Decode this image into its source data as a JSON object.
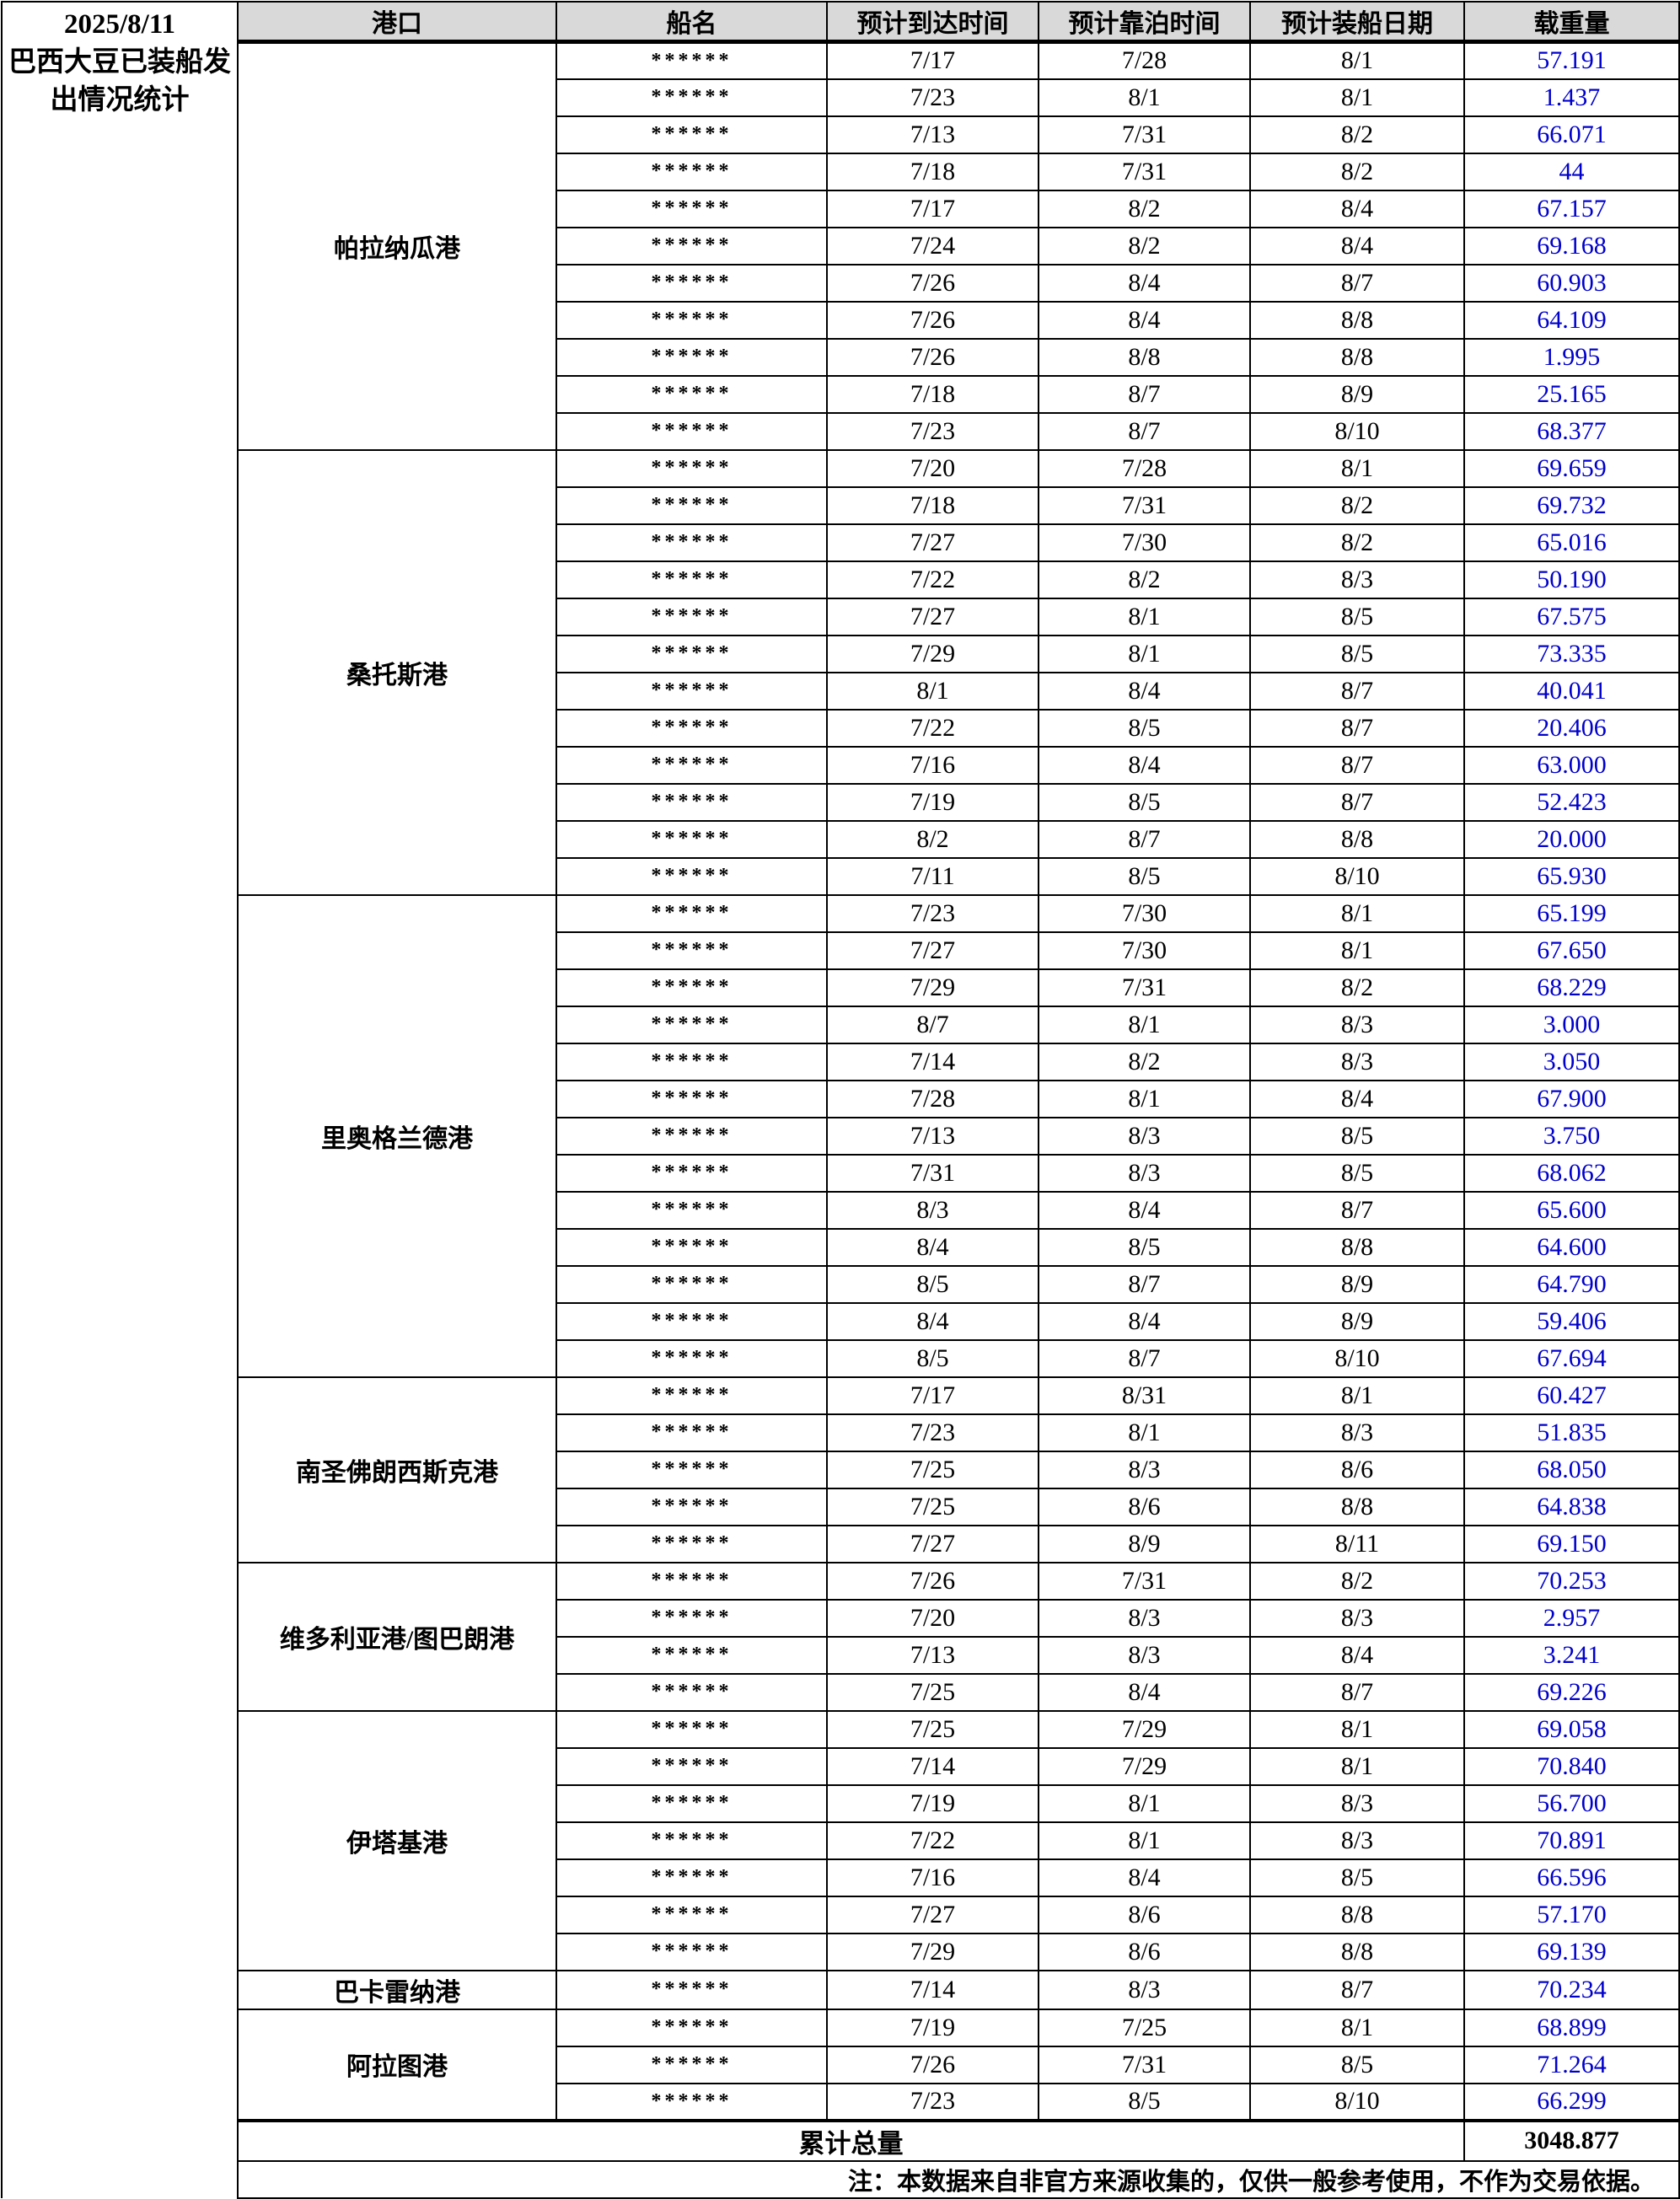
{
  "title": {
    "text": "2025/8/11\n巴西大豆已装船发\n出情况统计"
  },
  "columns": [
    "港口",
    "船名",
    "预计到达时间",
    "预计靠泊时间",
    "预计装船日期",
    "载重量"
  ],
  "ship_name_mask": "******",
  "ports": [
    {
      "name": "帕拉纳瓜港",
      "rows": [
        [
          "7/17",
          "7/28",
          "8/1",
          "57.191"
        ],
        [
          "7/23",
          "8/1",
          "8/1",
          "1.437"
        ],
        [
          "7/13",
          "7/31",
          "8/2",
          "66.071"
        ],
        [
          "7/18",
          "7/31",
          "8/2",
          "44"
        ],
        [
          "7/17",
          "8/2",
          "8/4",
          "67.157"
        ],
        [
          "7/24",
          "8/2",
          "8/4",
          "69.168"
        ],
        [
          "7/26",
          "8/4",
          "8/7",
          "60.903"
        ],
        [
          "7/26",
          "8/4",
          "8/8",
          "64.109"
        ],
        [
          "7/26",
          "8/8",
          "8/8",
          "1.995"
        ],
        [
          "7/18",
          "8/7",
          "8/9",
          "25.165"
        ],
        [
          "7/23",
          "8/7",
          "8/10",
          "68.377"
        ]
      ]
    },
    {
      "name": "桑托斯港",
      "rows": [
        [
          "7/20",
          "7/28",
          "8/1",
          "69.659"
        ],
        [
          "7/18",
          "7/31",
          "8/2",
          "69.732"
        ],
        [
          "7/27",
          "7/30",
          "8/2",
          "65.016"
        ],
        [
          "7/22",
          "8/2",
          "8/3",
          "50.190"
        ],
        [
          "7/27",
          "8/1",
          "8/5",
          "67.575"
        ],
        [
          "7/29",
          "8/1",
          "8/5",
          "73.335"
        ],
        [
          "8/1",
          "8/4",
          "8/7",
          "40.041"
        ],
        [
          "7/22",
          "8/5",
          "8/7",
          "20.406"
        ],
        [
          "7/16",
          "8/4",
          "8/7",
          "63.000"
        ],
        [
          "7/19",
          "8/5",
          "8/7",
          "52.423"
        ],
        [
          "8/2",
          "8/7",
          "8/8",
          "20.000"
        ],
        [
          "7/11",
          "8/5",
          "8/10",
          "65.930"
        ]
      ]
    },
    {
      "name": "里奥格兰德港",
      "rows": [
        [
          "7/23",
          "7/30",
          "8/1",
          "65.199"
        ],
        [
          "7/27",
          "7/30",
          "8/1",
          "67.650"
        ],
        [
          "7/29",
          "7/31",
          "8/2",
          "68.229"
        ],
        [
          "8/7",
          "8/1",
          "8/3",
          "3.000"
        ],
        [
          "7/14",
          "8/2",
          "8/3",
          "3.050"
        ],
        [
          "7/28",
          "8/1",
          "8/4",
          "67.900"
        ],
        [
          "7/13",
          "8/3",
          "8/5",
          "3.750"
        ],
        [
          "7/31",
          "8/3",
          "8/5",
          "68.062"
        ],
        [
          "8/3",
          "8/4",
          "8/7",
          "65.600"
        ],
        [
          "8/4",
          "8/5",
          "8/8",
          "64.600"
        ],
        [
          "8/5",
          "8/7",
          "8/9",
          "64.790"
        ],
        [
          "8/4",
          "8/4",
          "8/9",
          "59.406"
        ],
        [
          "8/5",
          "8/7",
          "8/10",
          "67.694"
        ]
      ]
    },
    {
      "name": "南圣佛朗西斯克港",
      "rows": [
        [
          "7/17",
          "8/31",
          "8/1",
          "60.427"
        ],
        [
          "7/23",
          "8/1",
          "8/3",
          "51.835"
        ],
        [
          "7/25",
          "8/3",
          "8/6",
          "68.050"
        ],
        [
          "7/25",
          "8/6",
          "8/8",
          "64.838"
        ],
        [
          "7/27",
          "8/9",
          "8/11",
          "69.150"
        ]
      ]
    },
    {
      "name": "维多利亚港/图巴朗港",
      "rows": [
        [
          "7/26",
          "7/31",
          "8/2",
          "70.253"
        ],
        [
          "7/20",
          "8/3",
          "8/3",
          "2.957"
        ],
        [
          "7/13",
          "8/3",
          "8/4",
          "3.241"
        ],
        [
          "7/25",
          "8/4",
          "8/7",
          "69.226"
        ]
      ]
    },
    {
      "name": "伊塔基港",
      "rows": [
        [
          "7/25",
          "7/29",
          "8/1",
          "69.058"
        ],
        [
          "7/14",
          "7/29",
          "8/1",
          "70.840"
        ],
        [
          "7/19",
          "8/1",
          "8/3",
          "56.700"
        ],
        [
          "7/22",
          "8/1",
          "8/3",
          "70.891"
        ],
        [
          "7/16",
          "8/4",
          "8/5",
          "66.596"
        ],
        [
          "7/27",
          "8/6",
          "8/8",
          "57.170"
        ],
        [
          "7/29",
          "8/6",
          "8/8",
          "69.139"
        ]
      ]
    },
    {
      "name": "巴卡雷纳港",
      "rows": [
        [
          "7/14",
          "8/3",
          "8/7",
          "70.234"
        ]
      ]
    },
    {
      "name": "阿拉图港",
      "rows": [
        [
          "7/19",
          "7/25",
          "8/1",
          "68.899"
        ],
        [
          "7/26",
          "7/31",
          "8/5",
          "71.264"
        ],
        [
          "7/23",
          "8/5",
          "8/10",
          "66.299"
        ]
      ]
    }
  ],
  "total": {
    "label": "累计总量",
    "value": "3048.877"
  },
  "note": "注：本数据来自非官方来源收集的，仅供一般参考使用，不作为交易依据。",
  "colors": {
    "header_bg": "#D9D9D9",
    "value_blue": "#0000CC",
    "border": "#000000"
  }
}
